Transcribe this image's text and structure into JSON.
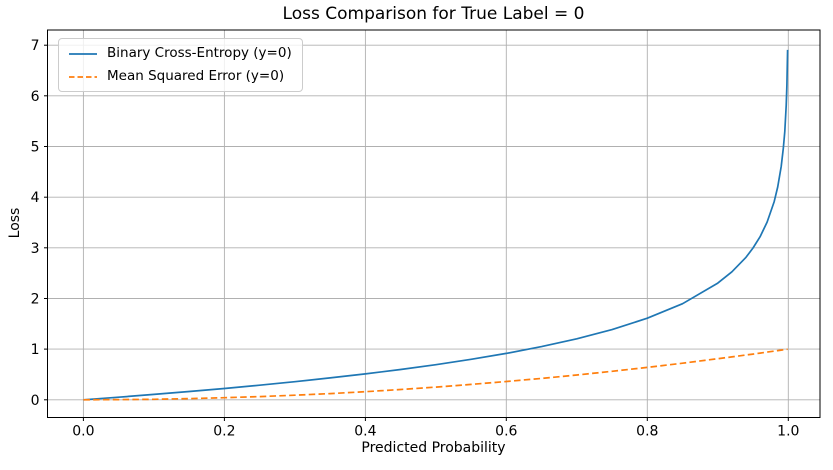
{
  "figure": {
    "background": "#ffffff"
  },
  "chart_data": {
    "type": "line",
    "title": "Loss Comparison for True Label = 0",
    "xlabel": "Predicted Probability",
    "ylabel": "Loss",
    "grid": true,
    "legend_position": "upper left",
    "xlim": [
      -0.051,
      1.045
    ],
    "ylim": [
      -0.35,
      7.3
    ],
    "xticks": {
      "values": [
        0.0,
        0.2,
        0.4,
        0.6,
        0.8,
        1.0
      ],
      "labels": [
        "0.0",
        "0.2",
        "0.4",
        "0.6",
        "0.8",
        "1.0"
      ]
    },
    "yticks": {
      "values": [
        0,
        1,
        2,
        3,
        4,
        5,
        6,
        7
      ],
      "labels": [
        "0",
        "1",
        "2",
        "3",
        "4",
        "5",
        "6",
        "7"
      ]
    },
    "x": [
      0,
      0.05,
      0.1,
      0.15,
      0.2,
      0.25,
      0.3,
      0.35,
      0.4,
      0.45,
      0.5,
      0.55,
      0.6,
      0.65,
      0.7,
      0.75,
      0.8,
      0.85,
      0.9,
      0.92,
      0.94,
      0.95,
      0.96,
      0.97,
      0.98,
      0.985,
      0.99,
      0.993,
      0.995,
      0.997,
      0.998,
      0.999
    ],
    "series": [
      {
        "key": "bce",
        "name": "Binary Cross-Entropy (y=0)",
        "color": "#1f77b4",
        "line_style": "solid",
        "values": [
          0,
          0.0513,
          0.1054,
          0.1625,
          0.2231,
          0.2877,
          0.3567,
          0.4308,
          0.5108,
          0.5978,
          0.6931,
          0.7985,
          0.9163,
          1.0498,
          1.204,
          1.3863,
          1.6094,
          1.8971,
          2.3026,
          2.5257,
          2.8134,
          2.9957,
          3.2189,
          3.5066,
          3.912,
          4.1997,
          4.6052,
          4.9618,
          5.2983,
          5.8091,
          6.2146,
          6.9078
        ]
      },
      {
        "key": "mse",
        "name": "Mean Squared Error (y=0)",
        "color": "#ff7f0e",
        "line_style": "dashed",
        "values": [
          0,
          0.0025,
          0.01,
          0.0225,
          0.04,
          0.0625,
          0.09,
          0.1225,
          0.16,
          0.2025,
          0.25,
          0.3025,
          0.36,
          0.4225,
          0.49,
          0.5625,
          0.64,
          0.7225,
          0.81,
          0.8464,
          0.8836,
          0.9025,
          0.9216,
          0.9409,
          0.9604,
          0.9702,
          0.9801,
          0.986,
          0.99,
          0.994,
          0.996,
          0.998
        ]
      }
    ],
    "colors": {
      "grid": "#b0b0b0",
      "axis": "#000000",
      "background": "#ffffff"
    }
  }
}
